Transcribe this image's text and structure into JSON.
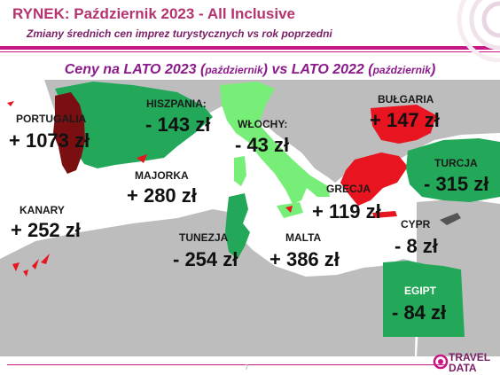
{
  "header": {
    "title": "RYNEK: Październik 2023 - All Inclusive",
    "subtitle": "Zmiany średnich cen imprez turystycznych vs rok poprzedni"
  },
  "comparison": {
    "part1": "Ceny na LATO 2023 (",
    "part2": "październik",
    "part3": ") vs  LATO 2022 (",
    "part4": "październik",
    "part5": ")"
  },
  "regions": [
    {
      "name": "PORTUGALIA",
      "value": "+ 1073 zł",
      "trend": "up"
    },
    {
      "name": "HISZPANIA:",
      "value": "- 143 zł",
      "trend": "down"
    },
    {
      "name": "WŁOCHY:",
      "value": "- 43 zł",
      "trend": "down"
    },
    {
      "name": "BUŁGARIA",
      "value": "+ 147 zł",
      "trend": "up"
    },
    {
      "name": "TURCJA",
      "value": "- 315 zł",
      "trend": "down"
    },
    {
      "name": "MAJORKA",
      "value": "+ 280 zł",
      "trend": "up"
    },
    {
      "name": "GRECJA",
      "value": "+ 119 zł",
      "trend": "up"
    },
    {
      "name": "KANARY",
      "value": "+ 252 zł",
      "trend": "up"
    },
    {
      "name": "CYPR",
      "value": "- 8 zł",
      "trend": "down"
    },
    {
      "name": "TUNEZJA",
      "value": "- 254 zł",
      "trend": "down"
    },
    {
      "name": "MALTA",
      "value": "+ 386 zł",
      "trend": "up"
    },
    {
      "name": "EGIPT",
      "value": "- 84 zł",
      "trend": "down"
    }
  ],
  "colors": {
    "accent": "#c71585",
    "increase": "#e8141f",
    "decrease": "#23a85a",
    "italy": "#77ee77",
    "portugal": "#7a0f12",
    "land": "#bdbdbd"
  },
  "footer": {
    "page": "7",
    "logo_line1": "TRAVEL",
    "logo_line2": "DATA"
  }
}
